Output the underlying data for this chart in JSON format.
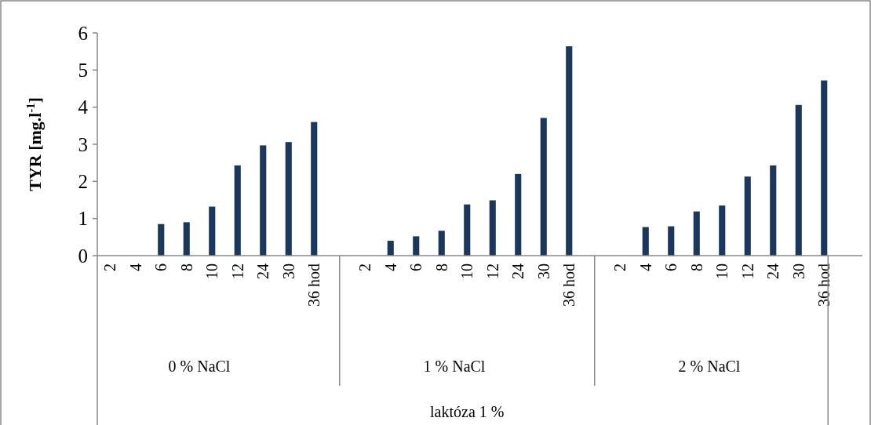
{
  "chart_data": {
    "type": "bar",
    "ylabel": "TYR [mg.l$^{-1}$]",
    "categories": [
      "2",
      "4",
      "6",
      "8",
      "10",
      "12",
      "24",
      "30",
      "36 hod",
      null,
      "2",
      "4",
      "6",
      "8",
      "10",
      "12",
      "24",
      "30",
      "36 hod",
      null,
      "2",
      "4",
      "6",
      "8",
      "10",
      "12",
      "24",
      "30",
      "36 hod",
      null
    ],
    "values": [
      0,
      0,
      0.85,
      0.9,
      1.32,
      2.43,
      2.97,
      3.06,
      3.6,
      null,
      0,
      0.4,
      0.52,
      0.67,
      1.38,
      1.49,
      2.2,
      3.71,
      5.64,
      null,
      0,
      0.77,
      0.79,
      1.19,
      1.35,
      2.13,
      2.43,
      4.06,
      4.72,
      null
    ],
    "color": "#1b375e",
    "ylim": [
      0,
      6
    ],
    "yticks": [
      0,
      1,
      2,
      3,
      4,
      5,
      6
    ],
    "grid": false,
    "annotations": [
      "0 % NaCl",
      "1 % NaCl",
      "2 % NaCl",
      "laktóza 1 %"
    ]
  }
}
